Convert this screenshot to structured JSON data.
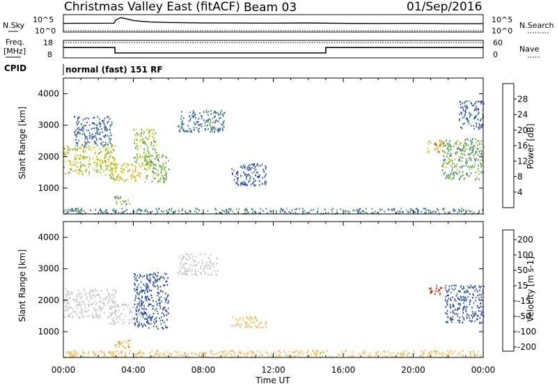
{
  "header": {
    "station": "Christmas Valley East (fitACF)",
    "beam": "Beam 03",
    "date": "01/Sep/2016"
  },
  "noise_panel": {
    "left_label": "N.Sky",
    "right_label": "N.Search",
    "left_ticks": [
      "10^5",
      "10^0"
    ],
    "right_ticks": [
      "10^5",
      "10^0"
    ]
  },
  "freq_panel": {
    "left_label_1": "Freq.",
    "left_label_2": "[MHz]",
    "right_label": "Nave",
    "left_ticks": [
      "18",
      "8"
    ],
    "right_ticks": [
      "60",
      "0"
    ]
  },
  "cpid": {
    "label": "CPID",
    "value": "normal (fast) 151 RF"
  },
  "colors": {
    "power": [
      "#0000e6",
      "#2f46c8",
      "#2f6fa0",
      "#3c8c6c",
      "#58b040",
      "#a8c820",
      "#f0d000",
      "#f4a000",
      "#f06000",
      "#e00000"
    ],
    "velocity": [
      "#e00000",
      "#f04000",
      "#f58c00",
      "#f5bc50",
      "#c8c8c8",
      "#c8c8c8",
      "#58c040",
      "#3c8c6c",
      "#2f6fa0",
      "#2030c0",
      "#0000e6"
    ]
  },
  "chart_data": [
    {
      "type": "line",
      "name": "noise",
      "series": [
        {
          "name": "N.Sky",
          "x": [
            0,
            2.9,
            3.0,
            3.3,
            3.6,
            4.0,
            4.5,
            5.0,
            6.0,
            8.0,
            10.0,
            12.0,
            14.0,
            16.0,
            18.0,
            20.0,
            22.0,
            24.0
          ],
          "values": [
            300,
            350,
            5000,
            30000,
            12000,
            3000,
            1500,
            900,
            600,
            450,
            400,
            380,
            420,
            300,
            280,
            300,
            260,
            250
          ]
        },
        {
          "name": "N.Search",
          "x": [
            0,
            4,
            8,
            12,
            16,
            20,
            24
          ],
          "values": [
            1,
            1,
            1,
            1,
            1,
            1,
            1
          ]
        }
      ],
      "ylim": [
        1,
        100000
      ]
    },
    {
      "type": "line",
      "name": "frequency",
      "series": [
        {
          "name": "Freq.",
          "x": [
            0,
            2.95,
            2.95,
            15.0,
            15.0,
            24
          ],
          "values": [
            14.0,
            14.0,
            10.6,
            10.6,
            14.0,
            14.0
          ]
        },
        {
          "name": "Nave",
          "x": [
            0,
            24
          ],
          "values": [
            17,
            17
          ]
        }
      ],
      "ylim": [
        8,
        18
      ]
    },
    {
      "type": "heatmap",
      "name": "power",
      "ylabel": "Slant Range [km]",
      "xlim": [
        0,
        24
      ],
      "ylim": [
        180,
        4500
      ],
      "yticks": [
        1000,
        2000,
        3000,
        4000
      ],
      "colorbar": {
        "label": "Power [dB]",
        "range": [
          0,
          32
        ],
        "ticks": [
          4,
          8,
          12,
          16,
          20,
          24,
          28
        ]
      },
      "echo_regions": [
        {
          "t": [
            0,
            3.0
          ],
          "r": [
            1450,
            2400
          ],
          "value": 18
        },
        {
          "t": [
            0.6,
            2.8
          ],
          "r": [
            2350,
            3300
          ],
          "value": 8
        },
        {
          "t": [
            2.6,
            4.4
          ],
          "r": [
            1250,
            1800
          ],
          "value": 20
        },
        {
          "t": [
            4.0,
            5.3
          ],
          "r": [
            1700,
            2900
          ],
          "value": 17
        },
        {
          "t": [
            4.6,
            6.0
          ],
          "r": [
            1200,
            2100
          ],
          "value": 15
        },
        {
          "t": [
            2.9,
            3.8
          ],
          "r": [
            500,
            750
          ],
          "value": 14
        },
        {
          "t": [
            6.5,
            9.2
          ],
          "r": [
            2800,
            3500
          ],
          "value": 9
        },
        {
          "t": [
            9.6,
            11.6
          ],
          "r": [
            1100,
            1800
          ],
          "value": 7
        },
        {
          "t": [
            20.8,
            21.7
          ],
          "r": [
            2150,
            2550
          ],
          "value": 25
        },
        {
          "t": [
            21.6,
            24
          ],
          "r": [
            1300,
            2600
          ],
          "value": 13
        },
        {
          "t": [
            22.6,
            24
          ],
          "r": [
            2900,
            3800
          ],
          "value": 7
        },
        {
          "t": [
            0,
            24
          ],
          "r": [
            200,
            380
          ],
          "value": 10
        }
      ]
    },
    {
      "type": "heatmap",
      "name": "velocity",
      "ylabel": "Slant Range [km]",
      "xlabel": "Time UT",
      "xlim": [
        0,
        24
      ],
      "ylim": [
        180,
        4500
      ],
      "yticks": [
        1000,
        2000,
        3000,
        4000
      ],
      "xticks": [
        "00:00",
        "04:00",
        "08:00",
        "12:00",
        "16:00",
        "20:00",
        "00:00"
      ],
      "colorbar": {
        "label": "Velocity [m s-1]",
        "ticks": [
          "200",
          "100",
          "50",
          "15",
          "-15",
          "-50",
          "-100",
          "-200"
        ]
      },
      "echo_regions": [
        {
          "t": [
            0,
            3.0
          ],
          "r": [
            1450,
            2400
          ],
          "value": 0
        },
        {
          "t": [
            2.6,
            4.4
          ],
          "r": [
            1250,
            1900
          ],
          "value": 0
        },
        {
          "t": [
            4.0,
            6.0
          ],
          "r": [
            1100,
            2900
          ],
          "value": 200
        },
        {
          "t": [
            6.5,
            8.8
          ],
          "r": [
            2800,
            3500
          ],
          "value": 10
        },
        {
          "t": [
            9.6,
            11.6
          ],
          "r": [
            1150,
            1500
          ],
          "value": -30
        },
        {
          "t": [
            2.9,
            3.8
          ],
          "r": [
            500,
            750
          ],
          "value": -50
        },
        {
          "t": [
            20.8,
            21.6
          ],
          "r": [
            2200,
            2500
          ],
          "value": -200
        },
        {
          "t": [
            21.8,
            24
          ],
          "r": [
            1300,
            2500
          ],
          "value": 200
        },
        {
          "t": [
            0,
            24
          ],
          "r": [
            200,
            420
          ],
          "value": -40
        }
      ]
    }
  ]
}
